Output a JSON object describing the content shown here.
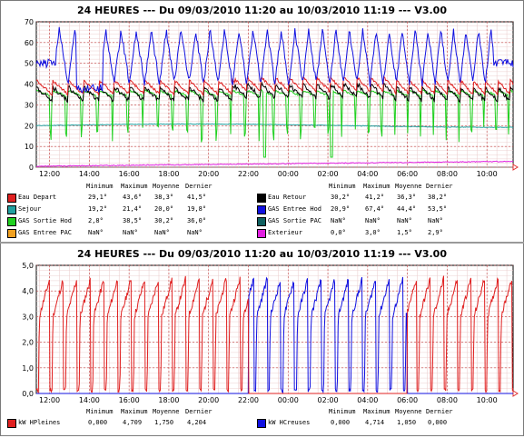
{
  "charts": {
    "temperature": {
      "title": "24 HEURES --- Du 09/03/2010 11:20 au 10/03/2010 11:19 --- V3.00"
    },
    "power": {
      "title": "24 HEURES --- Du 09/03/2010 11:20 au 10/03/2010 11:19 --- V3.00"
    }
  },
  "legend_headers": [
    "Minimum",
    "Maximum",
    "Moyenne",
    "Dernier"
  ],
  "chart_data": [
    {
      "type": "line",
      "title": "24 HEURES --- Du 09/03/2010 11:20 au 10/03/2010 11:19 --- V3.00",
      "xlabel": "",
      "ylabel": "",
      "grid": true,
      "x_ticks": [
        "12:00",
        "14:00",
        "16:00",
        "18:00",
        "20:00",
        "22:00",
        "00:00",
        "02:00",
        "04:00",
        "06:00",
        "08:00",
        "10:00"
      ],
      "x_range": [
        "11:20",
        "11:19"
      ],
      "y_ticks": [
        "0",
        "10",
        "20",
        "30",
        "40",
        "50",
        "60",
        "70"
      ],
      "ylim": [
        0,
        70
      ],
      "legend_placement": "bottom",
      "series": [
        {
          "name": "Eau Depart",
          "color": "#e02020",
          "stats": [
            "29,1°",
            "43,6°",
            "38,3°",
            "41,5°"
          ],
          "min": 29.1,
          "max": 43.6,
          "mean": 38.3,
          "last": 41.5
        },
        {
          "name": "Eau Retour",
          "color": "#000000",
          "stats": [
            "30,2°",
            "41,2°",
            "36,3°",
            "38,2°"
          ],
          "min": 30.2,
          "max": 41.2,
          "mean": 36.3,
          "last": 38.2
        },
        {
          "name": "Sejour",
          "color": "#20a0a0",
          "stats": [
            "19,2°",
            "21,4°",
            "20,0°",
            "19,8°"
          ],
          "min": 19.2,
          "max": 21.4,
          "mean": 20.0,
          "last": 19.8
        },
        {
          "name": "GAS Entree Hod",
          "color": "#1010e0",
          "stats": [
            "20,9°",
            "67,4°",
            "44,4°",
            "53,5°"
          ],
          "min": 20.9,
          "max": 67.4,
          "mean": 44.4,
          "last": 53.5
        },
        {
          "name": "GAS Sortie Hod",
          "color": "#20d020",
          "stats": [
            "2,8°",
            "38,5°",
            "30,2°",
            "36,0°"
          ],
          "min": 2.8,
          "max": 38.5,
          "mean": 30.2,
          "last": 36.0
        },
        {
          "name": "GAS Sortie PAC",
          "color": "#106060",
          "stats": [
            "NaN°",
            "NaN°",
            "NaN°",
            "NaN°"
          ],
          "min": null,
          "max": null,
          "mean": null,
          "last": null
        },
        {
          "name": "GAS Entree PAC",
          "color": "#f0a020",
          "stats": [
            "NaN°",
            "NaN°",
            "NaN°",
            "NaN°"
          ],
          "min": null,
          "max": null,
          "mean": null,
          "last": null
        },
        {
          "name": "Exterieur",
          "color": "#e020e0",
          "stats": [
            "0,0°",
            "3,0°",
            "1,5°",
            "2,9°"
          ],
          "min": 0.0,
          "max": 3.0,
          "mean": 1.5,
          "last": 2.9
        }
      ]
    },
    {
      "type": "line",
      "title": "24 HEURES --- Du 09/03/2010 11:20 au 10/03/2010 11:19 --- V3.00",
      "xlabel": "",
      "ylabel": "",
      "grid": true,
      "x_ticks": [
        "12:00",
        "14:00",
        "16:00",
        "18:00",
        "20:00",
        "22:00",
        "00:00",
        "02:00",
        "04:00",
        "06:00",
        "08:00",
        "10:00"
      ],
      "x_range": [
        "11:20",
        "11:19"
      ],
      "y_ticks": [
        "0,0",
        "1,0",
        "2,0",
        "3,0",
        "4,0",
        "5,0"
      ],
      "ylim": [
        0,
        5
      ],
      "legend_placement": "bottom",
      "series": [
        {
          "name": "kW HPleines",
          "color": "#e02020",
          "stats": [
            "0,000",
            "4,709",
            "1,750",
            "4,204"
          ],
          "min": 0.0,
          "max": 4.709,
          "mean": 1.75,
          "last": 4.204
        },
        {
          "name": "kW HCreuses",
          "color": "#1010e0",
          "stats": [
            "0,000",
            "4,714",
            "1,050",
            "0,000"
          ],
          "min": 0.0,
          "max": 4.714,
          "mean": 1.05,
          "last": 0.0
        }
      ]
    }
  ]
}
